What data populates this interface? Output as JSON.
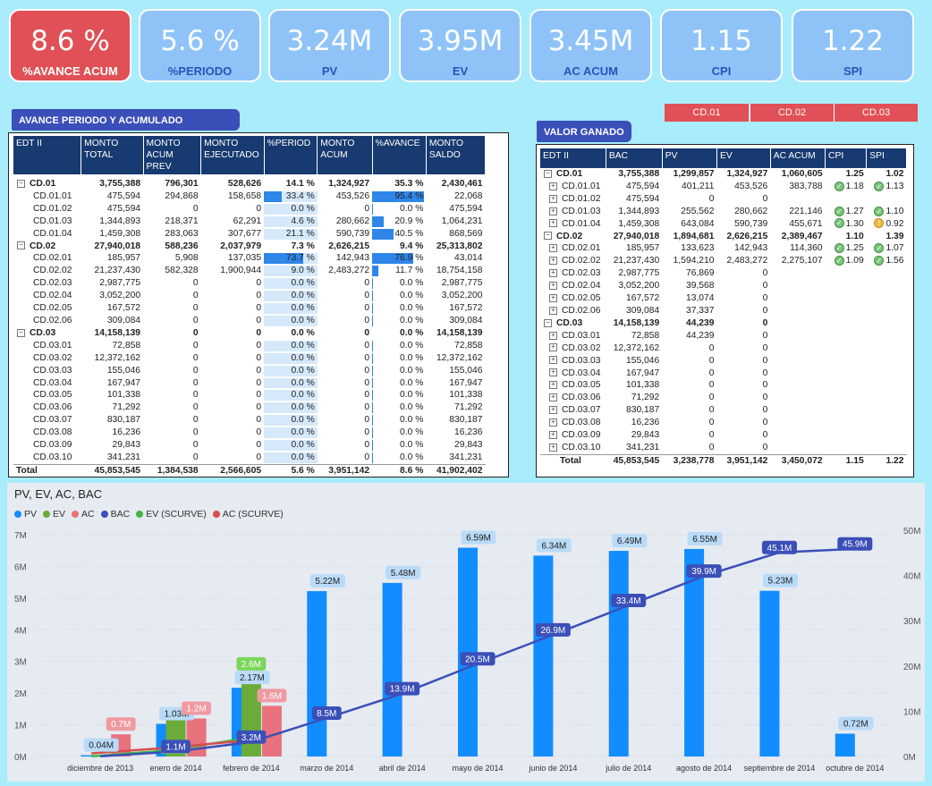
{
  "kpis": [
    {
      "value": "8.6 %",
      "label": "%AVANCE ACUM",
      "highlight": true
    },
    {
      "value": "5.6 %",
      "label": "%PERIODO",
      "highlight": false
    },
    {
      "value": "3.24M",
      "label": "PV",
      "highlight": false
    },
    {
      "value": "3.95M",
      "label": "EV",
      "highlight": false
    },
    {
      "value": "3.45M",
      "label": "AC ACUM",
      "highlight": false
    },
    {
      "value": "1.15",
      "label": "CPI",
      "highlight": false
    },
    {
      "value": "1.22",
      "label": "SPI",
      "highlight": false
    }
  ],
  "slicer": [
    "CD.01",
    "CD.02",
    "CD.03"
  ],
  "avance": {
    "title": "AVANCE PERIODO Y ACUMULADO",
    "headers": [
      "EDT II",
      "MONTO TOTAL",
      "MONTO ACUM PREV",
      "MONTO EJECUTADO",
      "%PERIOD",
      "MONTO ACUM",
      "%AVANCE",
      "MONTO SALDO"
    ],
    "rows": [
      {
        "level": 0,
        "edt": "CD.01",
        "total": "3,755,388",
        "prev": "796,301",
        "ejec": "528,626",
        "period": "14.1 %",
        "acum": "1,324,927",
        "avance": "35.3 %",
        "saldo": "2,430,461",
        "pp": 0,
        "pa": 0
      },
      {
        "level": 1,
        "edt": "CD.01.01",
        "total": "475,594",
        "prev": "294,868",
        "ejec": "158,658",
        "period": "33.4 %",
        "acum": "453,526",
        "avance": "95.4 %",
        "saldo": "22,068",
        "pp": 0.334,
        "pa": 0.954
      },
      {
        "level": 1,
        "edt": "CD.01.02",
        "total": "475,594",
        "prev": "0",
        "ejec": "0",
        "period": "0.0 %",
        "acum": "0",
        "avance": "0.0 %",
        "saldo": "475,594",
        "pp": 0,
        "pa": 0
      },
      {
        "level": 1,
        "edt": "CD.01.03",
        "total": "1,344,893",
        "prev": "218,371",
        "ejec": "62,291",
        "period": "4.6 %",
        "acum": "280,662",
        "avance": "20.9 %",
        "saldo": "1,064,231",
        "pp": 0.046,
        "pa": 0.209
      },
      {
        "level": 1,
        "edt": "CD.01.04",
        "total": "1,459,308",
        "prev": "283,063",
        "ejec": "307,677",
        "period": "21.1 %",
        "acum": "590,739",
        "avance": "40.5 %",
        "saldo": "868,569",
        "pp": 0.211,
        "pa": 0.405
      },
      {
        "level": 0,
        "edt": "CD.02",
        "total": "27,940,018",
        "prev": "588,236",
        "ejec": "2,037,979",
        "period": "7.3 %",
        "acum": "2,626,215",
        "avance": "9.4 %",
        "saldo": "25,313,802",
        "pp": 0,
        "pa": 0
      },
      {
        "level": 1,
        "edt": "CD.02.01",
        "total": "185,957",
        "prev": "5,908",
        "ejec": "137,035",
        "period": "73.7 %",
        "acum": "142,943",
        "avance": "76.9 %",
        "saldo": "43,014",
        "pp": 0.737,
        "pa": 0.769
      },
      {
        "level": 1,
        "edt": "CD.02.02",
        "total": "21,237,430",
        "prev": "582,328",
        "ejec": "1,900,944",
        "period": "9.0 %",
        "acum": "2,483,272",
        "avance": "11.7 %",
        "saldo": "18,754,158",
        "pp": 0.09,
        "pa": 0.117
      },
      {
        "level": 1,
        "edt": "CD.02.03",
        "total": "2,987,775",
        "prev": "0",
        "ejec": "0",
        "period": "0.0 %",
        "acum": "0",
        "avance": "0.0 %",
        "saldo": "2,987,775",
        "pp": 0,
        "pa": 0
      },
      {
        "level": 1,
        "edt": "CD.02.04",
        "total": "3,052,200",
        "prev": "0",
        "ejec": "0",
        "period": "0.0 %",
        "acum": "0",
        "avance": "0.0 %",
        "saldo": "3,052,200",
        "pp": 0,
        "pa": 0
      },
      {
        "level": 1,
        "edt": "CD.02.05",
        "total": "167,572",
        "prev": "0",
        "ejec": "0",
        "period": "0.0 %",
        "acum": "0",
        "avance": "0.0 %",
        "saldo": "167,572",
        "pp": 0,
        "pa": 0
      },
      {
        "level": 1,
        "edt": "CD.02.06",
        "total": "309,084",
        "prev": "0",
        "ejec": "0",
        "period": "0.0 %",
        "acum": "0",
        "avance": "0.0 %",
        "saldo": "309,084",
        "pp": 0,
        "pa": 0
      },
      {
        "level": 0,
        "edt": "CD.03",
        "total": "14,158,139",
        "prev": "0",
        "ejec": "0",
        "period": "0.0 %",
        "acum": "0",
        "avance": "0.0 %",
        "saldo": "14,158,139",
        "pp": 0,
        "pa": 0
      },
      {
        "level": 1,
        "edt": "CD.03.01",
        "total": "72,858",
        "prev": "0",
        "ejec": "0",
        "period": "0.0 %",
        "acum": "0",
        "avance": "0.0 %",
        "saldo": "72,858",
        "pp": 0,
        "pa": 0
      },
      {
        "level": 1,
        "edt": "CD.03.02",
        "total": "12,372,162",
        "prev": "0",
        "ejec": "0",
        "period": "0.0 %",
        "acum": "0",
        "avance": "0.0 %",
        "saldo": "12,372,162",
        "pp": 0,
        "pa": 0
      },
      {
        "level": 1,
        "edt": "CD.03.03",
        "total": "155,046",
        "prev": "0",
        "ejec": "0",
        "period": "0.0 %",
        "acum": "0",
        "avance": "0.0 %",
        "saldo": "155,046",
        "pp": 0,
        "pa": 0
      },
      {
        "level": 1,
        "edt": "CD.03.04",
        "total": "167,947",
        "prev": "0",
        "ejec": "0",
        "period": "0.0 %",
        "acum": "0",
        "avance": "0.0 %",
        "saldo": "167,947",
        "pp": 0,
        "pa": 0
      },
      {
        "level": 1,
        "edt": "CD.03.05",
        "total": "101,338",
        "prev": "0",
        "ejec": "0",
        "period": "0.0 %",
        "acum": "0",
        "avance": "0.0 %",
        "saldo": "101,338",
        "pp": 0,
        "pa": 0
      },
      {
        "level": 1,
        "edt": "CD.03.06",
        "total": "71,292",
        "prev": "0",
        "ejec": "0",
        "period": "0.0 %",
        "acum": "0",
        "avance": "0.0 %",
        "saldo": "71,292",
        "pp": 0,
        "pa": 0
      },
      {
        "level": 1,
        "edt": "CD.03.07",
        "total": "830,187",
        "prev": "0",
        "ejec": "0",
        "period": "0.0 %",
        "acum": "0",
        "avance": "0.0 %",
        "saldo": "830,187",
        "pp": 0,
        "pa": 0
      },
      {
        "level": 1,
        "edt": "CD.03.08",
        "total": "16,236",
        "prev": "0",
        "ejec": "0",
        "period": "0.0 %",
        "acum": "0",
        "avance": "0.0 %",
        "saldo": "16,236",
        "pp": 0,
        "pa": 0
      },
      {
        "level": 1,
        "edt": "CD.03.09",
        "total": "29,843",
        "prev": "0",
        "ejec": "0",
        "period": "0.0 %",
        "acum": "0",
        "avance": "0.0 %",
        "saldo": "29,843",
        "pp": 0,
        "pa": 0
      },
      {
        "level": 1,
        "edt": "CD.03.10",
        "total": "341,231",
        "prev": "0",
        "ejec": "0",
        "period": "0.0 %",
        "acum": "0",
        "avance": "0.0 %",
        "saldo": "341,231",
        "pp": 0,
        "pa": 0
      }
    ],
    "total": {
      "edt": "Total",
      "total": "45,853,545",
      "prev": "1,384,538",
      "ejec": "2,566,605",
      "period": "5.6 %",
      "acum": "3,951,142",
      "avance": "8.6 %",
      "saldo": "41,902,402"
    }
  },
  "valor": {
    "title": "VALOR GANADO",
    "headers": [
      "EDT II",
      "BAC",
      "PV",
      "EV",
      "AC ACUM",
      "CPI",
      "SPI"
    ],
    "rows": [
      {
        "level": 0,
        "edt": "CD.01",
        "bac": "3,755,388",
        "pv": "1,299,857",
        "ev": "1,324,927",
        "ac": "1,060,605",
        "cpi": "1.25",
        "spi": "1.02",
        "ci": "",
        "si": ""
      },
      {
        "level": 1,
        "edt": "CD.01.01",
        "bac": "475,594",
        "pv": "401,211",
        "ev": "453,526",
        "ac": "383,788",
        "cpi": "1.18",
        "spi": "1.13",
        "ci": "ok",
        "si": "ok"
      },
      {
        "level": 1,
        "edt": "CD.01.02",
        "bac": "475,594",
        "pv": "0",
        "ev": "0",
        "ac": "",
        "cpi": "",
        "spi": "",
        "ci": "",
        "si": ""
      },
      {
        "level": 1,
        "edt": "CD.01.03",
        "bac": "1,344,893",
        "pv": "255,562",
        "ev": "280,662",
        "ac": "221,146",
        "cpi": "1.27",
        "spi": "1.10",
        "ci": "ok",
        "si": "ok"
      },
      {
        "level": 1,
        "edt": "CD.01.04",
        "bac": "1,459,308",
        "pv": "643,084",
        "ev": "590,739",
        "ac": "455,671",
        "cpi": "1.30",
        "spi": "0.92",
        "ci": "ok",
        "si": "warn"
      },
      {
        "level": 0,
        "edt": "CD.02",
        "bac": "27,940,018",
        "pv": "1,894,681",
        "ev": "2,626,215",
        "ac": "2,389,467",
        "cpi": "1.10",
        "spi": "1.39",
        "ci": "",
        "si": ""
      },
      {
        "level": 1,
        "edt": "CD.02.01",
        "bac": "185,957",
        "pv": "133,623",
        "ev": "142,943",
        "ac": "114,360",
        "cpi": "1.25",
        "spi": "1.07",
        "ci": "ok",
        "si": "ok"
      },
      {
        "level": 1,
        "edt": "CD.02.02",
        "bac": "21,237,430",
        "pv": "1,594,210",
        "ev": "2,483,272",
        "ac": "2,275,107",
        "cpi": "1.09",
        "spi": "1.56",
        "ci": "ok",
        "si": "ok"
      },
      {
        "level": 1,
        "edt": "CD.02.03",
        "bac": "2,987,775",
        "pv": "76,869",
        "ev": "0",
        "ac": "",
        "cpi": "",
        "spi": "",
        "ci": "",
        "si": ""
      },
      {
        "level": 1,
        "edt": "CD.02.04",
        "bac": "3,052,200",
        "pv": "39,568",
        "ev": "0",
        "ac": "",
        "cpi": "",
        "spi": "",
        "ci": "",
        "si": ""
      },
      {
        "level": 1,
        "edt": "CD.02.05",
        "bac": "167,572",
        "pv": "13,074",
        "ev": "0",
        "ac": "",
        "cpi": "",
        "spi": "",
        "ci": "",
        "si": ""
      },
      {
        "level": 1,
        "edt": "CD.02.06",
        "bac": "309,084",
        "pv": "37,337",
        "ev": "0",
        "ac": "",
        "cpi": "",
        "spi": "",
        "ci": "",
        "si": ""
      },
      {
        "level": 0,
        "edt": "CD.03",
        "bac": "14,158,139",
        "pv": "44,239",
        "ev": "0",
        "ac": "",
        "cpi": "",
        "spi": "",
        "ci": "",
        "si": ""
      },
      {
        "level": 1,
        "edt": "CD.03.01",
        "bac": "72,858",
        "pv": "44,239",
        "ev": "0",
        "ac": "",
        "cpi": "",
        "spi": "",
        "ci": "",
        "si": ""
      },
      {
        "level": 1,
        "edt": "CD.03.02",
        "bac": "12,372,162",
        "pv": "0",
        "ev": "0",
        "ac": "",
        "cpi": "",
        "spi": "",
        "ci": "",
        "si": ""
      },
      {
        "level": 1,
        "edt": "CD.03.03",
        "bac": "155,046",
        "pv": "0",
        "ev": "0",
        "ac": "",
        "cpi": "",
        "spi": "",
        "ci": "",
        "si": ""
      },
      {
        "level": 1,
        "edt": "CD.03.04",
        "bac": "167,947",
        "pv": "0",
        "ev": "0",
        "ac": "",
        "cpi": "",
        "spi": "",
        "ci": "",
        "si": ""
      },
      {
        "level": 1,
        "edt": "CD.03.05",
        "bac": "101,338",
        "pv": "0",
        "ev": "0",
        "ac": "",
        "cpi": "",
        "spi": "",
        "ci": "",
        "si": ""
      },
      {
        "level": 1,
        "edt": "CD.03.06",
        "bac": "71,292",
        "pv": "0",
        "ev": "0",
        "ac": "",
        "cpi": "",
        "spi": "",
        "ci": "",
        "si": ""
      },
      {
        "level": 1,
        "edt": "CD.03.07",
        "bac": "830,187",
        "pv": "0",
        "ev": "0",
        "ac": "",
        "cpi": "",
        "spi": "",
        "ci": "",
        "si": ""
      },
      {
        "level": 1,
        "edt": "CD.03.08",
        "bac": "16,236",
        "pv": "0",
        "ev": "0",
        "ac": "",
        "cpi": "",
        "spi": "",
        "ci": "",
        "si": ""
      },
      {
        "level": 1,
        "edt": "CD.03.09",
        "bac": "29,843",
        "pv": "0",
        "ev": "0",
        "ac": "",
        "cpi": "",
        "spi": "",
        "ci": "",
        "si": ""
      },
      {
        "level": 1,
        "edt": "CD.03.10",
        "bac": "341,231",
        "pv": "0",
        "ev": "0",
        "ac": "",
        "cpi": "",
        "spi": "",
        "ci": "",
        "si": ""
      }
    ],
    "total": {
      "edt": "Total",
      "bac": "45,853,545",
      "pv": "3,238,778",
      "ev": "3,951,142",
      "ac": "3,450,072",
      "cpi": "1.15",
      "spi": "1.22"
    }
  },
  "chart_data": {
    "type": "bar",
    "title": "PV, EV, AC, BAC",
    "legend": [
      {
        "name": "PV",
        "color": "#118dff"
      },
      {
        "name": "EV",
        "color": "#6aab3a"
      },
      {
        "name": "AC",
        "color": "#e8727c"
      },
      {
        "name": "BAC",
        "color": "#3b4fb8"
      },
      {
        "name": "EV (SCURVE)",
        "color": "#3fb843"
      },
      {
        "name": "AC (SCURVE)",
        "color": "#d94d4d"
      }
    ],
    "categories": [
      "diciembre de 2013",
      "enero de 2014",
      "febrero de 2014",
      "marzo de 2014",
      "abril de 2014",
      "mayo de 2014",
      "junio de 2014",
      "julio de 2014",
      "agosto de 2014",
      "septiembre de 2014",
      "octubre de 2014"
    ],
    "series": [
      {
        "name": "PV",
        "axis": "left",
        "values": [
          0.04,
          1.03,
          2.17,
          5.22,
          5.48,
          6.59,
          6.34,
          6.49,
          6.55,
          5.23,
          0.72
        ],
        "labels": [
          "0.04M",
          "1.03M",
          "2.17M",
          "5.22M",
          "5.48M",
          "6.59M",
          "6.34M",
          "6.49M",
          "6.55M",
          "5.23M",
          "0.72M"
        ]
      },
      {
        "name": "EV",
        "axis": "left",
        "values": [
          null,
          1.3,
          2.6,
          null,
          null,
          null,
          null,
          null,
          null,
          null,
          null
        ],
        "labels": [
          "",
          "1.3M",
          "2.6M",
          "",
          "",
          "",
          "",
          "",
          "",
          "",
          ""
        ]
      },
      {
        "name": "AC",
        "axis": "left",
        "values": [
          0.7,
          1.2,
          1.6,
          null,
          null,
          null,
          null,
          null,
          null,
          null,
          null
        ],
        "labels": [
          "0.7M",
          "1.2M",
          "1.6M",
          "",
          "",
          "",
          "",
          "",
          "",
          "",
          ""
        ]
      },
      {
        "name": "BAC",
        "axis": "right",
        "values": [
          0.04,
          1.1,
          3.2,
          8.5,
          13.9,
          20.5,
          26.9,
          33.4,
          39.9,
          45.1,
          45.9
        ],
        "labels": [
          "",
          "1.1M",
          "3.2M",
          "8.5M",
          "13.9M",
          "20.5M",
          "26.9M",
          "33.4M",
          "39.9M",
          "45.1M",
          "45.9M"
        ]
      },
      {
        "name": "EV (SCURVE)",
        "axis": "right",
        "values": [
          0.04,
          1.3,
          3.9,
          null,
          null,
          null,
          null,
          null,
          null,
          null,
          null
        ],
        "labels": [
          "",
          "",
          "",
          "",
          "",
          "",
          "",
          "",
          "",
          "",
          ""
        ]
      },
      {
        "name": "AC (SCURVE)",
        "axis": "right",
        "values": [
          0.7,
          1.9,
          3.45,
          null,
          null,
          null,
          null,
          null,
          null,
          null,
          null
        ],
        "labels": [
          "",
          "",
          "",
          "",
          "",
          "",
          "",
          "",
          "",
          "",
          ""
        ]
      }
    ],
    "y_left": {
      "ticks": [
        "0M",
        "1M",
        "2M",
        "3M",
        "4M",
        "5M",
        "6M",
        "7M"
      ],
      "range": [
        0,
        7
      ]
    },
    "y_right": {
      "ticks": [
        "0M",
        "10M",
        "20M",
        "30M",
        "40M",
        "50M"
      ],
      "range": [
        0,
        50
      ]
    },
    "grid": true,
    "legend_position": "top-left"
  }
}
